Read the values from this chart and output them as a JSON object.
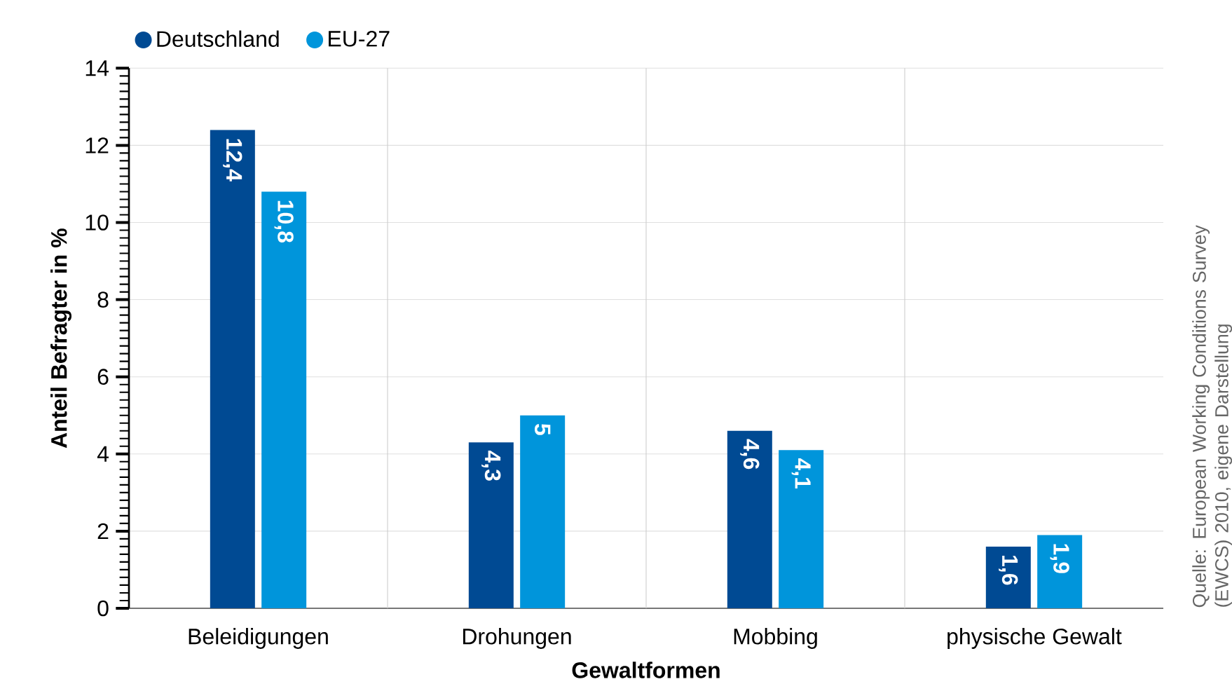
{
  "chart_data": {
    "type": "bar",
    "xlabel": "Gewaltformen",
    "ylabel": "Anteil Befragter in %",
    "categories": [
      "Beleidigungen",
      "Drohungen",
      "Mobbing",
      "physische Gewalt"
    ],
    "series": [
      {
        "name": "Deutschland",
        "color": "#004a93",
        "values": [
          12.4,
          4.3,
          4.6,
          1.6
        ],
        "value_labels": [
          "12,4",
          "4,3",
          "4,6",
          "1,6"
        ]
      },
      {
        "name": "EU-27",
        "color": "#0095db",
        "values": [
          10.8,
          5,
          4.1,
          1.9
        ],
        "value_labels": [
          "10,8",
          "5",
          "4,1",
          "1,9"
        ]
      }
    ],
    "ylim": [
      0,
      14
    ],
    "yticks": [
      0,
      2,
      4,
      6,
      8,
      10,
      12,
      14
    ],
    "grid": true,
    "legend": "top left",
    "annotations": [
      "Quelle: European Working Conditions Survey (EWCS) 2010, eigene Darstellung"
    ]
  }
}
